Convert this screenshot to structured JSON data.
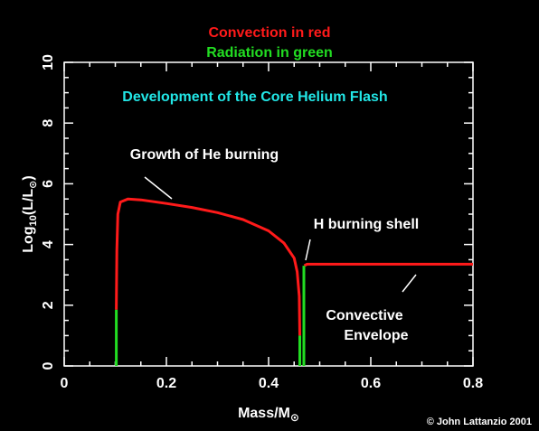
{
  "colors": {
    "background": "#000000",
    "axes": "#ffffff",
    "convection": "#ff1a1a",
    "radiation": "#22dd22",
    "heading": "#22e6e6",
    "text": "#ffffff"
  },
  "legend": {
    "convection_label": "Convection in red",
    "radiation_label": "Radiation in green"
  },
  "heading": "Development of the Core Helium Flash",
  "copyright": "© John Lattanzio 2001",
  "annotations": {
    "growth": "Growth of He burning",
    "h_shell": "H burning shell",
    "envelope_line1": "Convective",
    "envelope_line2": "Envelope"
  },
  "chart_data": {
    "type": "line",
    "xlabel": "Mass/M⊙",
    "ylabel": "Log10(L/L⊙)",
    "xlim": [
      0,
      0.8
    ],
    "ylim": [
      0,
      10
    ],
    "x_ticks": [
      "0",
      "0.2",
      "0.4",
      "0.6",
      "0.8"
    ],
    "y_ticks": [
      "0",
      "2",
      "4",
      "6",
      "8",
      "10"
    ],
    "series": [
      {
        "name": "Convection",
        "color": "#ff1a1a",
        "segments": [
          [
            [
              0.102,
              1.85
            ],
            [
              0.103,
              3.8
            ],
            [
              0.105,
              5.0
            ],
            [
              0.11,
              5.4
            ],
            [
              0.125,
              5.5
            ],
            [
              0.15,
              5.47
            ],
            [
              0.2,
              5.35
            ],
            [
              0.25,
              5.22
            ],
            [
              0.3,
              5.05
            ],
            [
              0.35,
              4.82
            ],
            [
              0.4,
              4.45
            ],
            [
              0.43,
              4.05
            ],
            [
              0.45,
              3.55
            ],
            [
              0.456,
              3.1
            ],
            [
              0.46,
              2.3
            ],
            [
              0.461,
              1.0
            ]
          ],
          [
            [
              0.47,
              3.3
            ],
            [
              0.475,
              3.35
            ],
            [
              0.8,
              3.35
            ]
          ]
        ]
      },
      {
        "name": "Radiation",
        "color": "#22dd22",
        "segments": [
          [
            [
              0.102,
              0.0
            ],
            [
              0.102,
              1.85
            ]
          ],
          [
            [
              0.461,
              0.0
            ],
            [
              0.461,
              1.0
            ]
          ],
          [
            [
              0.469,
              0.0
            ],
            [
              0.469,
              3.3
            ]
          ]
        ]
      }
    ]
  }
}
